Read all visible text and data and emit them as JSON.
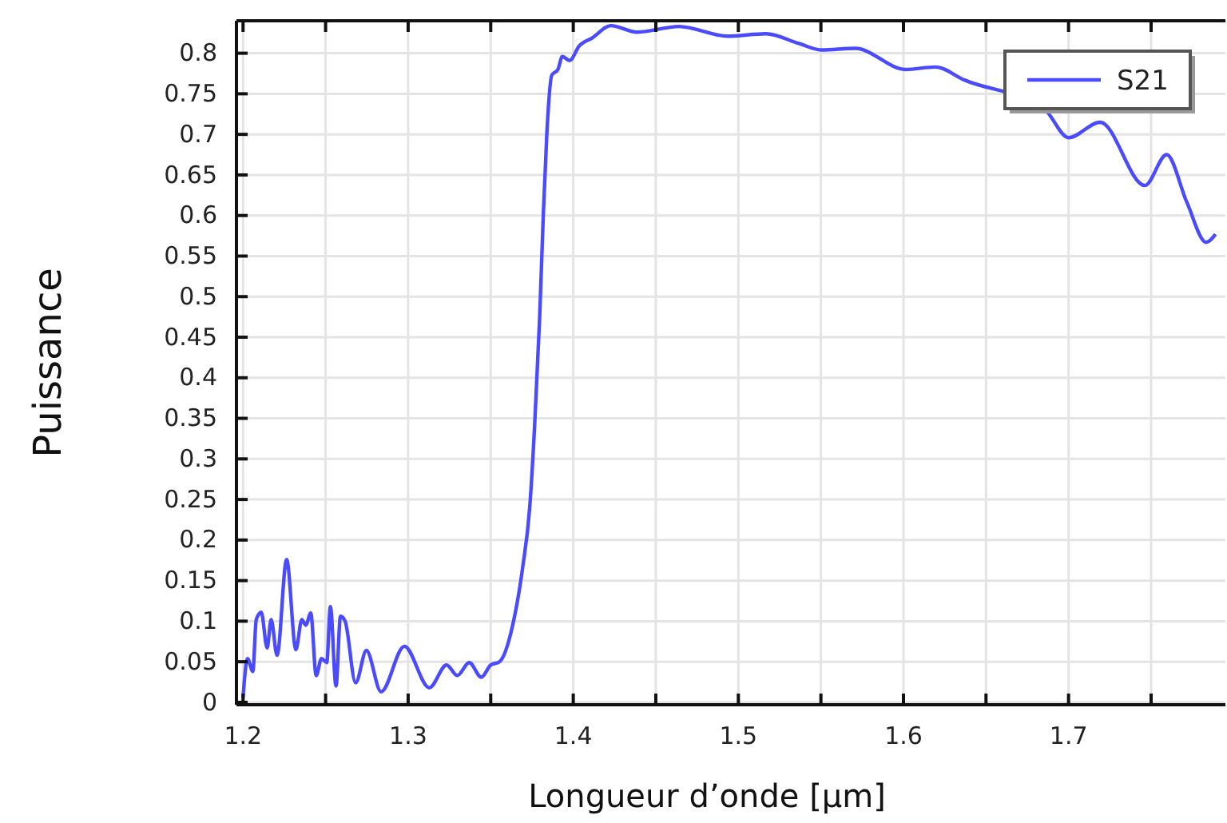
{
  "chart_data": {
    "type": "line",
    "xlabel": "Longueur d’onde [μm]",
    "ylabel": "Puissance",
    "xlim": [
      1.196,
      1.795
    ],
    "ylim": [
      -0.003,
      0.84
    ],
    "xticks": [
      1.2,
      {
        "value": 1.25,
        "label": null
      },
      1.3,
      {
        "value": 1.35,
        "label": null
      },
      1.4,
      {
        "value": 1.45,
        "label": null
      },
      1.5,
      {
        "value": 1.55,
        "label": null
      },
      1.6,
      {
        "value": 1.65,
        "label": null
      },
      1.7,
      {
        "value": 1.75,
        "label": null
      }
    ],
    "yticks": [
      0,
      0.05,
      0.1,
      0.15,
      0.2,
      0.25,
      0.3,
      0.35,
      0.4,
      0.45,
      0.5,
      0.55,
      0.6,
      0.65,
      0.7,
      0.75,
      0.8
    ],
    "grid": true,
    "legend": "top right",
    "line_style": "solid",
    "marker": "none",
    "series": [
      {
        "name": "S21",
        "color": "#4a4aff",
        "x": [
          1.2,
          1.2027,
          1.2059,
          1.208,
          1.211,
          1.2146,
          1.217,
          1.2206,
          1.2264,
          1.232,
          1.2356,
          1.238,
          1.241,
          1.2443,
          1.2475,
          1.2507,
          1.2529,
          1.2563,
          1.259,
          1.2618,
          1.2682,
          1.2747,
          1.2836,
          1.2977,
          1.3128,
          1.3233,
          1.3297,
          1.337,
          1.3443,
          1.35,
          1.3553,
          1.3633,
          1.3692,
          1.3737,
          1.3766,
          1.3796,
          1.3819,
          1.384,
          1.387,
          1.3907,
          1.3934,
          1.3978,
          1.4036,
          1.4116,
          1.4227,
          1.4386,
          1.4641,
          1.4935,
          1.5167,
          1.5367,
          1.5503,
          1.5708,
          1.6013,
          1.6193,
          1.6369,
          1.6855,
          1.7,
          1.7192,
          1.7462,
          1.7594,
          1.7717,
          1.7833,
          1.789
        ],
        "values": [
          0.006,
          0.054,
          0.038,
          0.102,
          0.111,
          0.067,
          0.102,
          0.058,
          0.176,
          0.065,
          0.102,
          0.095,
          0.11,
          0.033,
          0.054,
          0.049,
          0.118,
          0.02,
          0.106,
          0.1,
          0.024,
          0.064,
          0.013,
          0.069,
          0.018,
          0.046,
          0.033,
          0.049,
          0.031,
          0.046,
          0.05,
          0.095,
          0.164,
          0.242,
          0.341,
          0.472,
          0.603,
          0.701,
          0.773,
          0.78,
          0.796,
          0.791,
          0.809,
          0.819,
          0.834,
          0.826,
          0.833,
          0.821,
          0.824,
          0.812,
          0.804,
          0.806,
          0.78,
          0.783,
          0.767,
          0.731,
          0.696,
          0.715,
          0.637,
          0.675,
          0.616,
          0.567,
          0.577
        ]
      }
    ]
  }
}
